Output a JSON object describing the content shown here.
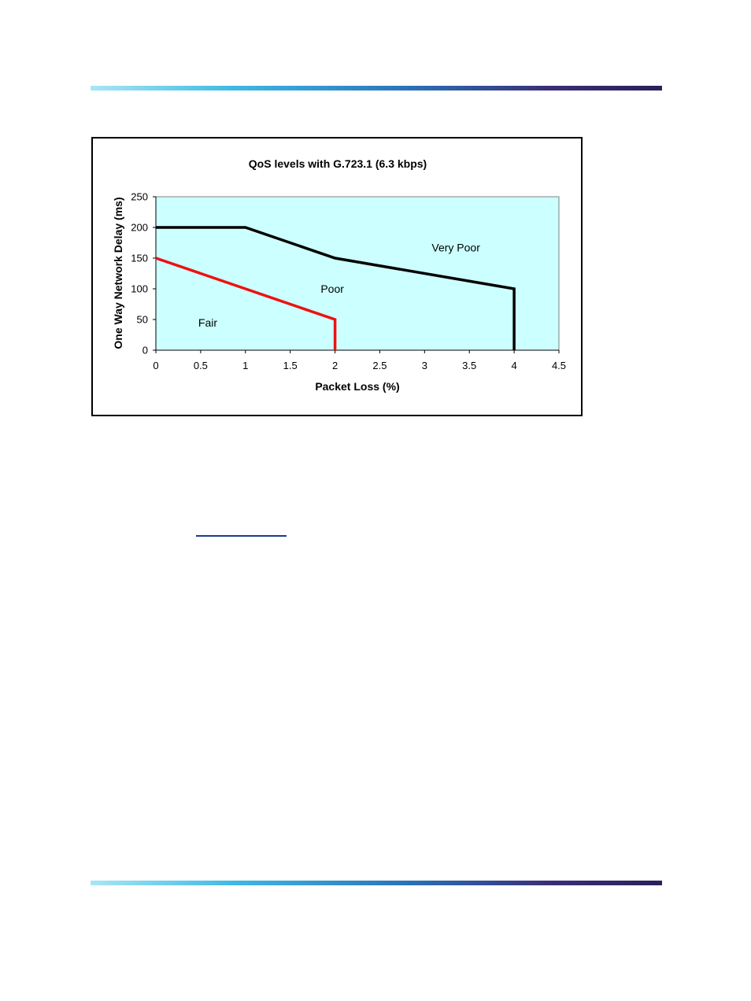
{
  "colors": {
    "plot_background": "#ccffff",
    "boundary_fair": "#ee1111",
    "boundary_poor": "#000000",
    "rule_gradient_start": "#a8e6f5",
    "rule_gradient_end": "#2b1f5a"
  },
  "chart_data": {
    "type": "line",
    "title": "QoS levels with G.723.1 (6.3 kbps)",
    "xlabel": "Packet Loss (%)",
    "ylabel": "One Way Network Delay (ms)",
    "xlim": [
      0,
      4.5
    ],
    "ylim": [
      0,
      250
    ],
    "xticks": [
      0,
      0.5,
      1,
      1.5,
      2,
      2.5,
      3,
      3.5,
      4,
      4.5
    ],
    "yticks": [
      0,
      50,
      100,
      150,
      200,
      250
    ],
    "xtick_labels": [
      "0",
      "0.5",
      "1",
      "1.5",
      "2",
      "2.5",
      "3",
      "3.5",
      "4",
      "4.5"
    ],
    "ytick_labels": [
      "0",
      "50",
      "100",
      "150",
      "200",
      "250"
    ],
    "grid": false,
    "series": [
      {
        "color": "#ee1111",
        "points": [
          [
            0,
            150
          ],
          [
            2,
            50
          ],
          [
            2,
            0
          ]
        ]
      },
      {
        "color": "#000000",
        "points": [
          [
            0,
            200
          ],
          [
            1,
            200
          ],
          [
            2,
            150
          ],
          [
            4,
            100
          ],
          [
            4,
            0
          ]
        ]
      }
    ],
    "annotations": [
      {
        "text": "Fair",
        "x": 0.58,
        "y": 45
      },
      {
        "text": "Poor",
        "x": 1.97,
        "y": 100
      },
      {
        "text": "Very Poor",
        "x": 3.35,
        "y": 167
      }
    ]
  }
}
